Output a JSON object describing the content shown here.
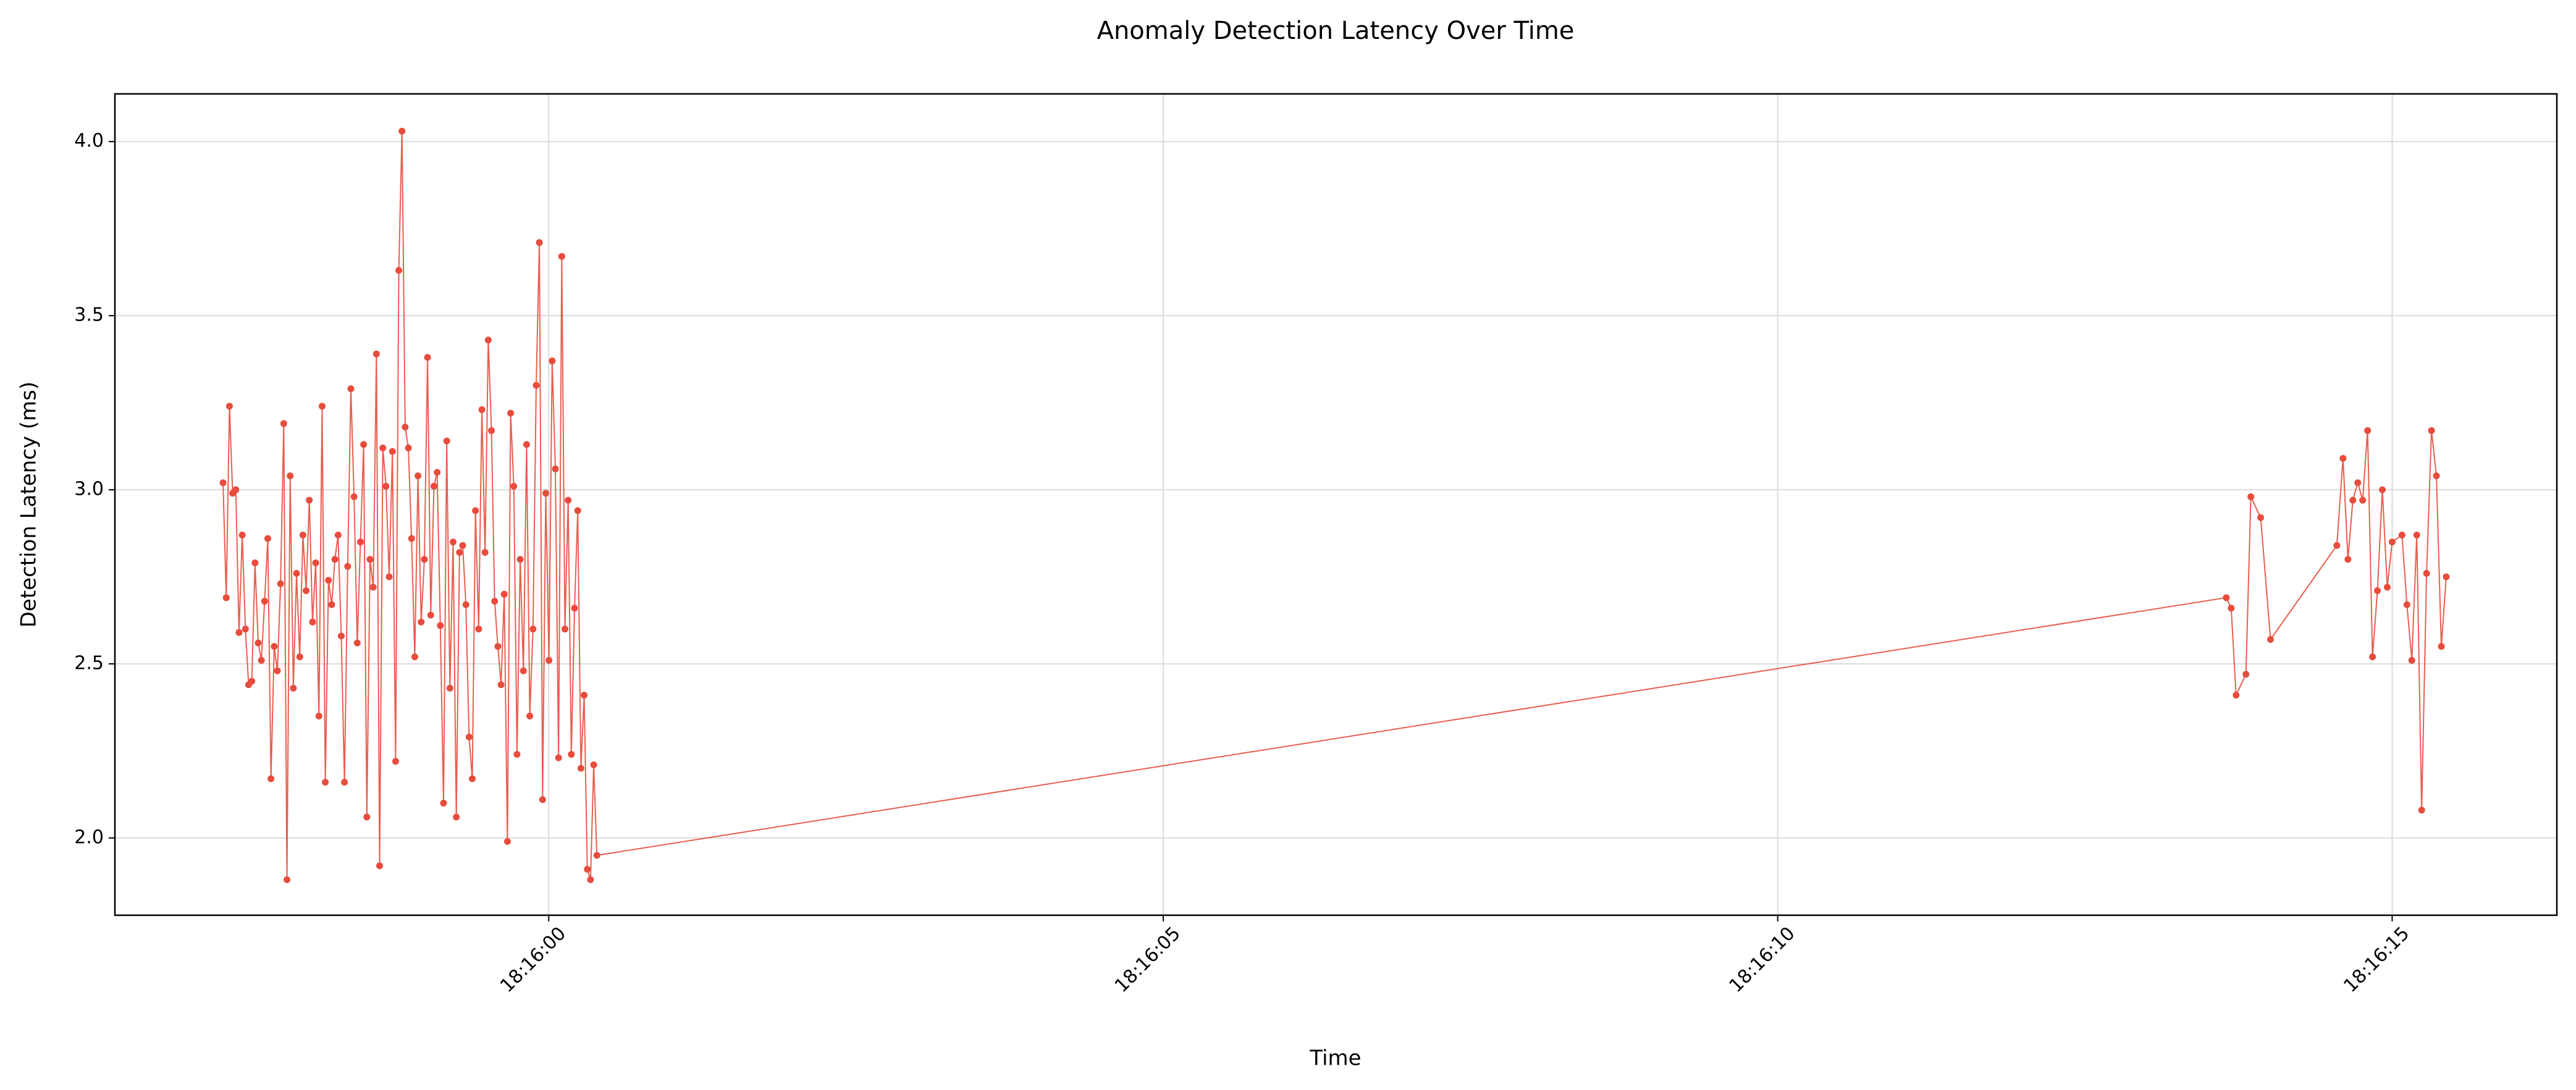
{
  "chart_data": {
    "type": "line",
    "title": "Anomaly Detection Latency Over Time",
    "xlabel": "Time",
    "ylabel": "Detection Latency (ms)",
    "color": "#e74c3c",
    "grid": true,
    "x": [
      "18:15:57.350",
      "18:15:57.376",
      "18:15:57.402",
      "18:15:57.428",
      "18:15:57.454",
      "18:15:57.480",
      "18:15:57.506",
      "18:15:57.532",
      "18:15:57.558",
      "18:15:57.584",
      "18:15:57.610",
      "18:15:57.636",
      "18:15:57.662",
      "18:15:57.688",
      "18:15:57.714",
      "18:15:57.740",
      "18:15:57.766",
      "18:15:57.792",
      "18:15:57.818",
      "18:15:57.844",
      "18:15:57.870",
      "18:15:57.896",
      "18:15:57.922",
      "18:15:57.948",
      "18:15:57.974",
      "18:15:58.000",
      "18:15:58.026",
      "18:15:58.052",
      "18:15:58.078",
      "18:15:58.104",
      "18:15:58.130",
      "18:15:58.156",
      "18:15:58.182",
      "18:15:58.208",
      "18:15:58.234",
      "18:15:58.260",
      "18:15:58.286",
      "18:15:58.312",
      "18:15:58.338",
      "18:15:58.364",
      "18:15:58.390",
      "18:15:58.416",
      "18:15:58.442",
      "18:15:58.468",
      "18:15:58.494",
      "18:15:58.520",
      "18:15:58.546",
      "18:15:58.572",
      "18:15:58.598",
      "18:15:58.624",
      "18:15:58.650",
      "18:15:58.676",
      "18:15:58.702",
      "18:15:58.728",
      "18:15:58.754",
      "18:15:58.780",
      "18:15:58.806",
      "18:15:58.832",
      "18:15:58.858",
      "18:15:58.884",
      "18:15:58.910",
      "18:15:58.936",
      "18:15:58.962",
      "18:15:58.988",
      "18:15:59.014",
      "18:15:59.040",
      "18:15:59.066",
      "18:15:59.092",
      "18:15:59.118",
      "18:15:59.144",
      "18:15:59.170",
      "18:15:59.196",
      "18:15:59.222",
      "18:15:59.248",
      "18:15:59.274",
      "18:15:59.300",
      "18:15:59.326",
      "18:15:59.352",
      "18:15:59.378",
      "18:15:59.404",
      "18:15:59.430",
      "18:15:59.456",
      "18:15:59.482",
      "18:15:59.508",
      "18:15:59.534",
      "18:15:59.560",
      "18:15:59.586",
      "18:15:59.612",
      "18:15:59.638",
      "18:15:59.664",
      "18:15:59.690",
      "18:15:59.716",
      "18:15:59.742",
      "18:15:59.768",
      "18:15:59.794",
      "18:15:59.820",
      "18:15:59.846",
      "18:15:59.872",
      "18:15:59.898",
      "18:15:59.924",
      "18:15:59.950",
      "18:15:59.976",
      "18:16:00.002",
      "18:16:00.028",
      "18:16:00.054",
      "18:16:00.080",
      "18:16:00.106",
      "18:16:00.132",
      "18:16:00.158",
      "18:16:00.184",
      "18:16:00.210",
      "18:16:00.236",
      "18:16:00.262",
      "18:16:00.288",
      "18:16:00.314",
      "18:16:00.340",
      "18:16:00.366",
      "18:16:00.392",
      "18:16:13.650",
      "18:16:13.690",
      "18:16:13.730",
      "18:16:13.810",
      "18:16:13.850",
      "18:16:13.930",
      "18:16:14.010",
      "18:16:14.550",
      "18:16:14.600",
      "18:16:14.640",
      "18:16:14.680",
      "18:16:14.720",
      "18:16:14.760",
      "18:16:14.800",
      "18:16:14.840",
      "18:16:14.880",
      "18:16:14.920",
      "18:16:14.960",
      "18:16:15.000",
      "18:16:15.080",
      "18:16:15.120",
      "18:16:15.160",
      "18:16:15.200",
      "18:16:15.240",
      "18:16:15.280",
      "18:16:15.320",
      "18:16:15.360",
      "18:16:15.400",
      "18:16:15.440"
    ],
    "values": [
      3.02,
      2.69,
      3.24,
      2.99,
      3.0,
      2.59,
      2.87,
      2.6,
      2.44,
      2.45,
      2.79,
      2.56,
      2.51,
      2.68,
      2.86,
      2.17,
      2.55,
      2.48,
      2.73,
      3.19,
      1.88,
      3.04,
      2.43,
      2.76,
      2.52,
      2.87,
      2.71,
      2.97,
      2.62,
      2.79,
      2.35,
      3.24,
      2.16,
      2.74,
      2.67,
      2.8,
      2.87,
      2.58,
      2.16,
      2.78,
      3.29,
      2.98,
      2.56,
      2.85,
      3.13,
      2.06,
      2.8,
      2.72,
      3.39,
      1.92,
      3.12,
      3.01,
      2.75,
      3.11,
      2.22,
      3.63,
      4.03,
      3.18,
      3.12,
      2.86,
      2.52,
      3.04,
      2.62,
      2.8,
      3.38,
      2.64,
      3.01,
      3.05,
      2.61,
      2.1,
      3.14,
      2.43,
      2.85,
      2.06,
      2.82,
      2.84,
      2.67,
      2.29,
      2.17,
      2.94,
      2.6,
      3.23,
      2.82,
      3.43,
      3.17,
      2.68,
      2.55,
      2.44,
      2.7,
      1.99,
      3.22,
      3.01,
      2.24,
      2.8,
      2.48,
      3.13,
      2.35,
      2.6,
      3.3,
      3.71,
      2.11,
      2.99,
      2.51,
      3.37,
      3.06,
      2.23,
      3.67,
      2.6,
      2.97,
      2.24,
      2.66,
      2.94,
      2.2,
      2.41,
      1.91,
      1.88,
      2.21,
      1.95,
      2.69,
      2.66,
      2.41,
      2.47,
      2.98,
      2.92,
      2.57,
      2.84,
      3.09,
      2.8,
      2.97,
      3.02,
      2.97,
      3.17,
      2.52,
      2.71,
      3.0,
      2.72,
      2.85,
      2.87,
      2.67,
      2.51,
      2.87,
      2.08,
      2.76,
      3.17,
      3.04,
      2.55,
      2.75
    ],
    "xlim": [
      "18:15:56.470",
      "18:16:16.340"
    ],
    "xticks": [
      "18:16:00",
      "18:16:05",
      "18:16:10",
      "18:16:15"
    ],
    "ylim": [
      1.778,
      4.137
    ],
    "yticks": [
      {
        "value": 2,
        "label": "2.0"
      },
      2.5,
      {
        "value": 3,
        "label": "3.0"
      },
      3.5,
      {
        "value": 4,
        "label": "4.0"
      }
    ]
  }
}
